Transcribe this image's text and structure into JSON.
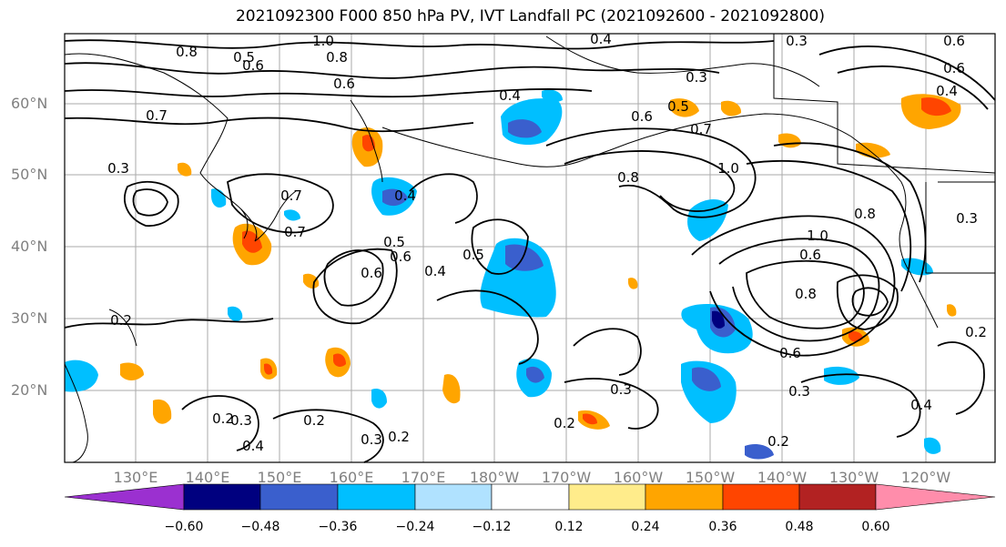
{
  "title": "2021092300 F000 850 hPa PV, IVT Landfall PC (2021092600 - 2021092800)",
  "lat_labels": [
    "60°N",
    "50°N",
    "40°N",
    "30°N",
    "20°N"
  ],
  "lon_labels": [
    "130°E",
    "140°E",
    "150°E",
    "160°E",
    "170°E",
    "180°W",
    "170°W",
    "160°W",
    "150°W",
    "140°W",
    "130°W",
    "120°W"
  ],
  "contour_labels": [
    "0.8",
    "1.0",
    "0.4",
    "0.3",
    "0.6",
    "0.5",
    "0.6",
    "0.8",
    "0.3",
    "0.4",
    "0.7",
    "0.6",
    "0.5",
    "0.7",
    "0.4",
    "0.7",
    "0.6",
    "0.5",
    "0.4",
    "0.5",
    "0.6",
    "0.3",
    "0.2",
    "0.2",
    "0.3",
    "0.4",
    "0.2",
    "0.3",
    "0.2",
    "0.3",
    "0.2",
    "0.2",
    "0.8",
    "1.0",
    "0.8",
    "0.7",
    "0.6",
    "1.0",
    "0.8",
    "0.6",
    "0.3",
    "0.4",
    "0.2",
    "0.6",
    "0.4",
    "0.3",
    "0.6"
  ],
  "colorbar": {
    "ticks": [
      "−0.60",
      "−0.48",
      "−0.36",
      "−0.24",
      "−0.12",
      "0.12",
      "0.24",
      "0.36",
      "0.48",
      "0.60"
    ],
    "colors": [
      "#9b30d0",
      "#00007f",
      "#3a5fcd",
      "#00bfff",
      "#b0e2ff",
      "#ffffff",
      "#ffec8b",
      "#ffa500",
      "#ff4500",
      "#b22222",
      "#ff8dab"
    ]
  },
  "shading_colors": {
    "neg_light": "#b0e2ff",
    "neg_mid": "#00bfff",
    "neg_strong": "#3a5fcd",
    "neg_max": "#00007f",
    "pos_light": "#ffec8b",
    "pos_mid": "#ffa500",
    "pos_strong": "#ff4500",
    "pos_max": "#b22222"
  }
}
